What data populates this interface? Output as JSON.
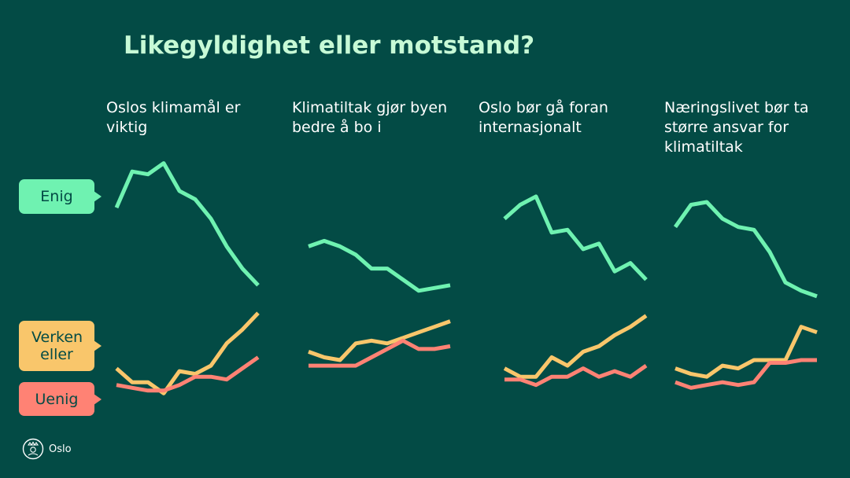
{
  "slide": {
    "title": "Likegyldighet eller motstand?"
  },
  "legend": [
    {
      "label": "Enig",
      "color": "#6ff2b1"
    },
    {
      "label": "Verken eller",
      "color": "#f9c66b"
    },
    {
      "label": "Uenig",
      "color": "#ff8274"
    }
  ],
  "logo": {
    "text": "Oslo",
    "icon": "oslo-seal-icon"
  },
  "chart_data": [
    {
      "type": "line",
      "title": "Oslos klimamål er viktig",
      "x": [
        1,
        2,
        3,
        4,
        5,
        6,
        7,
        8,
        9,
        10
      ],
      "series": [
        {
          "name": "Enig",
          "values": [
            74,
            87,
            86,
            90,
            80,
            77,
            70,
            60,
            52,
            46
          ]
        },
        {
          "name": "Verken eller",
          "values": [
            16,
            11,
            11,
            7,
            15,
            14,
            17,
            25,
            30,
            36
          ]
        },
        {
          "name": "Uenig",
          "values": [
            10,
            9,
            8,
            8,
            10,
            13,
            13,
            12,
            16,
            20
          ]
        }
      ]
    },
    {
      "type": "line",
      "title": "Klimatiltak gjør byen bedre å bo i",
      "x": [
        1,
        2,
        3,
        4,
        5,
        6,
        7,
        8,
        9,
        10
      ],
      "series": [
        {
          "name": "Enig",
          "values": [
            60,
            62,
            60,
            57,
            52,
            52,
            48,
            44,
            45,
            46
          ]
        },
        {
          "name": "Verken eller",
          "values": [
            22,
            20,
            19,
            25,
            26,
            25,
            27,
            29,
            31,
            33
          ]
        },
        {
          "name": "Uenig",
          "values": [
            17,
            17,
            17,
            17,
            20,
            23,
            26,
            23,
            23,
            24
          ]
        }
      ]
    },
    {
      "type": "line",
      "title": "Oslo bør gå foran internasjonalt",
      "x": [
        1,
        2,
        3,
        4,
        5,
        6,
        7,
        8,
        9,
        10
      ],
      "series": [
        {
          "name": "Enig",
          "values": [
            70,
            75,
            78,
            65,
            66,
            59,
            61,
            51,
            54,
            48
          ]
        },
        {
          "name": "Verken eller",
          "values": [
            16,
            13,
            13,
            20,
            17,
            22,
            24,
            28,
            31,
            35
          ]
        },
        {
          "name": "Uenig",
          "values": [
            12,
            12,
            10,
            13,
            13,
            16,
            13,
            15,
            13,
            17
          ]
        }
      ]
    },
    {
      "type": "line",
      "title": "Næringslivet bør ta større ansvar for klimatiltak",
      "x": [
        1,
        2,
        3,
        4,
        5,
        6,
        7,
        8,
        9,
        10
      ],
      "series": [
        {
          "name": "Enig",
          "values": [
            67,
            75,
            76,
            70,
            67,
            66,
            58,
            47,
            44,
            42
          ]
        },
        {
          "name": "Verken eller",
          "values": [
            16,
            14,
            13,
            17,
            16,
            19,
            19,
            19,
            31,
            29
          ]
        },
        {
          "name": "Uenig",
          "values": [
            11,
            9,
            10,
            11,
            10,
            11,
            18,
            18,
            19,
            19
          ]
        }
      ]
    }
  ]
}
